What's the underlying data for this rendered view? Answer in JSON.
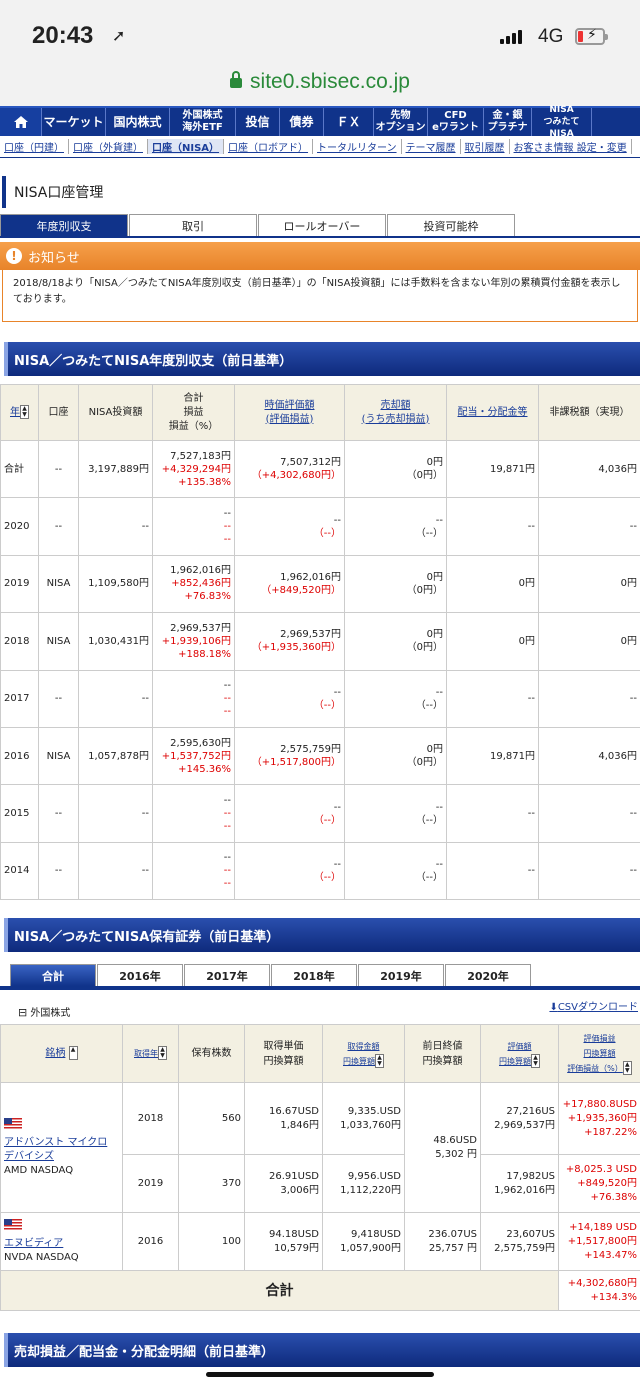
{
  "status": {
    "time": "20:43",
    "network": "4G"
  },
  "browser": {
    "url": "site0.sbisec.co.jp"
  },
  "mainnav": [
    "マーケット",
    "国内株式",
    "外国株式\n海外ETF",
    "投信",
    "債券",
    "ＦＸ",
    "先物\nオプション",
    "CFD\neワラント",
    "金・銀\nプラチナ",
    "NISA\nつみたてNISA"
  ],
  "subnav": [
    "口座（円建）",
    "口座（外貨建）",
    "口座（NISA）",
    "口座（ロボアド）",
    "トータルリターン",
    "テーマ履歴",
    "取引履歴",
    "お客さま情報 設定・変更"
  ],
  "page_title": "NISA口座管理",
  "tabs": [
    "年度別収支",
    "取引",
    "ロールオーバー",
    "投資可能枠"
  ],
  "notice": {
    "title": "お知らせ",
    "body": "2018/8/18より「NISA／つみたてNISA年度別収支（前日基準）」の「NISA投資額」には手数料を含まない年別の累積買付金額を表示しております。"
  },
  "section1": "NISA／つみたてNISA年度別収支（前日基準）",
  "t1_headers": [
    "年",
    "口座",
    "NISA投資額",
    "合計\n損益\n損益（%）",
    "時価評価額\n(評価損益)",
    "売却額\n(うち売却損益)",
    "配当・分配金等",
    "非課税額（実現）"
  ],
  "t1_rows": [
    {
      "year": "合計",
      "acct": "--",
      "invest": "3,197,889円",
      "total": "7,527,183円",
      "pl": "+4,329,294円",
      "plpct": "+135.38%",
      "mv": "7,507,312円",
      "upl": "（+4,302,680円）",
      "sale": "0円",
      "salepl": "（0円）",
      "div": "19,871円",
      "tax": "4,036円"
    },
    {
      "year": "2020",
      "acct": "--",
      "invest": "--",
      "total": "--",
      "pl": "--",
      "plpct": "--",
      "mv": "--",
      "upl": "（--）",
      "sale": "--",
      "salepl": "（--）",
      "div": "--",
      "tax": "--"
    },
    {
      "year": "2019",
      "acct": "NISA",
      "invest": "1,109,580円",
      "total": "1,962,016円",
      "pl": "+852,436円",
      "plpct": "+76.83%",
      "mv": "1,962,016円",
      "upl": "（+849,520円）",
      "sale": "0円",
      "salepl": "（0円）",
      "div": "0円",
      "tax": "0円"
    },
    {
      "year": "2018",
      "acct": "NISA",
      "invest": "1,030,431円",
      "total": "2,969,537円",
      "pl": "+1,939,106円",
      "plpct": "+188.18%",
      "mv": "2,969,537円",
      "upl": "（+1,935,360円）",
      "sale": "0円",
      "salepl": "（0円）",
      "div": "0円",
      "tax": "0円"
    },
    {
      "year": "2017",
      "acct": "--",
      "invest": "--",
      "total": "--",
      "pl": "--",
      "plpct": "--",
      "mv": "--",
      "upl": "（--）",
      "sale": "--",
      "salepl": "（--）",
      "div": "--",
      "tax": "--"
    },
    {
      "year": "2016",
      "acct": "NISA",
      "invest": "1,057,878円",
      "total": "2,595,630円",
      "pl": "+1,537,752円",
      "plpct": "+145.36%",
      "mv": "2,575,759円",
      "upl": "（+1,517,800円）",
      "sale": "0円",
      "salepl": "（0円）",
      "div": "19,871円",
      "tax": "4,036円"
    },
    {
      "year": "2015",
      "acct": "--",
      "invest": "--",
      "total": "--",
      "pl": "--",
      "plpct": "--",
      "mv": "--",
      "upl": "（--）",
      "sale": "--",
      "salepl": "（--）",
      "div": "--",
      "tax": "--"
    },
    {
      "year": "2014",
      "acct": "--",
      "invest": "--",
      "total": "--",
      "pl": "--",
      "plpct": "--",
      "mv": "--",
      "upl": "（--）",
      "sale": "--",
      "salepl": "（--）",
      "div": "--",
      "tax": "--"
    }
  ],
  "section2": "NISA／つみたてNISA保有証券（前日基準）",
  "tabs2": [
    "合計",
    "2016年",
    "2017年",
    "2018年",
    "2019年",
    "2020年"
  ],
  "foreign_label": "外国株式",
  "csv": "CSVダウンロード",
  "t2_headers": {
    "name": "銘柄",
    "year": "取得年",
    "qty": "保有株数",
    "unit": "取得単価\n円換算額",
    "cost": "取得金額\n円換算額",
    "close": "前日終値\n円換算額",
    "mv": "評価額\n円換算額",
    "pl": "評価損益\n円換算額\n評価損益（%）"
  },
  "amd": {
    "name": "アドバンスト マイクロ デバイシズ",
    "code": "AMD NASDAQ",
    "close": "48.6USD",
    "close_jpy": "5,302 円",
    "rows": [
      {
        "year": "2018",
        "qty": "560",
        "unit": "16.67USD",
        "unit_jpy": "1,846円",
        "cost": "9,335.USD",
        "cost_jpy": "1,033,760円",
        "mv": "27,216US",
        "mv_jpy": "2,969,537円",
        "pl": "+17,880.8USD",
        "pl_jpy": "+1,935,360円",
        "pct": "+187.22%"
      },
      {
        "year": "2019",
        "qty": "370",
        "unit": "26.91USD",
        "unit_jpy": "3,006円",
        "cost": "9,956.USD",
        "cost_jpy": "1,112,220円",
        "mv": "17,982US",
        "mv_jpy": "1,962,016円",
        "pl": "+8,025.3 USD",
        "pl_jpy": "+849,520円",
        "pct": "+76.38%"
      }
    ]
  },
  "nvda": {
    "name": "エヌビディア",
    "code": "NVDA NASDAQ",
    "year": "2016",
    "qty": "100",
    "unit": "94.18USD",
    "unit_jpy": "10,579円",
    "cost": "9,418USD",
    "cost_jpy": "1,057,900円",
    "close": "236.07US",
    "close_jpy": "25,757 円",
    "mv": "23,607US",
    "mv_jpy": "2,575,759円",
    "pl": "+14,189 USD",
    "pl_jpy": "+1,517,800円",
    "pct": "+143.47%"
  },
  "total": {
    "label": "合計",
    "pl": "+4,302,680円",
    "pct": "+134.3%"
  },
  "section3": "売却損益／配当金・分配金明細（前日基準）"
}
